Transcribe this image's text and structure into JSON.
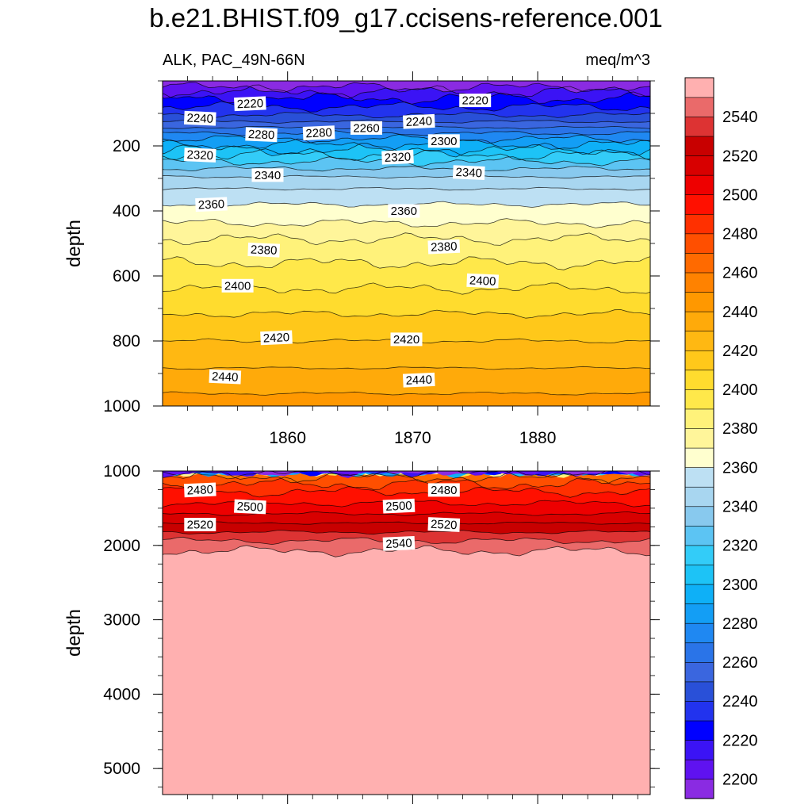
{
  "chart_data": {
    "type": "contour",
    "title": "b.e21.BHIST.f09_g17.ccisens-reference.001",
    "left_label": "ALK, PAC_49N-66N",
    "right_label": "meq/m^3",
    "xlabel": "",
    "ylabel": "depth",
    "x_ticks": [
      "1860",
      "1870",
      "1880"
    ],
    "xlim": [
      1850,
      1889
    ],
    "panels": [
      {
        "name": "upper",
        "ylim": [
          0,
          1000
        ],
        "y_ticks": [
          "200",
          "400",
          "600",
          "800",
          "1000"
        ],
        "contour_labels": [
          {
            "text": "2220",
            "x": 1857,
            "y": 70
          },
          {
            "text": "2220",
            "x": 1875,
            "y": 60
          },
          {
            "text": "2240",
            "x": 1853,
            "y": 115
          },
          {
            "text": "2240",
            "x": 1870.5,
            "y": 125
          },
          {
            "text": "2260",
            "x": 1866.3,
            "y": 145
          },
          {
            "text": "2280",
            "x": 1857.9,
            "y": 165
          },
          {
            "text": "2280",
            "x": 1862.5,
            "y": 160
          },
          {
            "text": "2300",
            "x": 1872.5,
            "y": 185
          },
          {
            "text": "2320",
            "x": 1853,
            "y": 228
          },
          {
            "text": "2320",
            "x": 1868.8,
            "y": 235
          },
          {
            "text": "2340",
            "x": 1858.4,
            "y": 290
          },
          {
            "text": "2340",
            "x": 1874.5,
            "y": 282
          },
          {
            "text": "2360",
            "x": 1853.9,
            "y": 380
          },
          {
            "text": "2360",
            "x": 1869.3,
            "y": 400
          },
          {
            "text": "2380",
            "x": 1858.1,
            "y": 520
          },
          {
            "text": "2380",
            "x": 1872.5,
            "y": 510
          },
          {
            "text": "2400",
            "x": 1856,
            "y": 630
          },
          {
            "text": "2400",
            "x": 1875.6,
            "y": 615
          },
          {
            "text": "2420",
            "x": 1859.1,
            "y": 790
          },
          {
            "text": "2420",
            "x": 1869.5,
            "y": 795
          },
          {
            "text": "2440",
            "x": 1855,
            "y": 910
          },
          {
            "text": "2440",
            "x": 1870.5,
            "y": 920
          }
        ]
      },
      {
        "name": "lower",
        "ylim": [
          1000,
          5350
        ],
        "y_ticks": [
          "1000",
          "2000",
          "3000",
          "4000",
          "5000"
        ],
        "contour_labels": [
          {
            "text": "2480",
            "x": 1853,
            "y": 1255
          },
          {
            "text": "2480",
            "x": 1872.5,
            "y": 1255
          },
          {
            "text": "2500",
            "x": 1857,
            "y": 1480
          },
          {
            "text": "2500",
            "x": 1868.9,
            "y": 1470
          },
          {
            "text": "2520",
            "x": 1853,
            "y": 1720
          },
          {
            "text": "2520",
            "x": 1872.5,
            "y": 1720
          },
          {
            "text": "2540",
            "x": 1868.9,
            "y": 1975
          }
        ]
      }
    ],
    "colorbar": {
      "levels": [
        2200,
        2210,
        2220,
        2230,
        2240,
        2250,
        2260,
        2270,
        2280,
        2290,
        2300,
        2310,
        2320,
        2330,
        2340,
        2350,
        2360,
        2370,
        2380,
        2390,
        2400,
        2410,
        2420,
        2430,
        2440,
        2450,
        2460,
        2470,
        2480,
        2490,
        2500,
        2510,
        2520,
        2530,
        2540,
        2550
      ],
      "tick_labels": [
        "2200",
        "2220",
        "2240",
        "2260",
        "2280",
        "2300",
        "2320",
        "2340",
        "2360",
        "2380",
        "2400",
        "2420",
        "2440",
        "2460",
        "2480",
        "2500",
        "2520",
        "2540"
      ],
      "colors": [
        "#8a2be2",
        "#5f12f0",
        "#3b13f5",
        "#0000ff",
        "#2233ee",
        "#2950d8",
        "#3a66df",
        "#2a74e8",
        "#1f88f2",
        "#139ef5",
        "#0eb0f7",
        "#1dc3f6",
        "#33ccf8",
        "#5cc4f3",
        "#88c9ee",
        "#a8d6f0",
        "#bde0f3",
        "#ffffcf",
        "#fff59a",
        "#fff27a",
        "#ffe84a",
        "#ffdc2e",
        "#ffc81a",
        "#ffb812",
        "#ffaa0a",
        "#ff9800",
        "#ff8200",
        "#ff6a00",
        "#ff4f00",
        "#ff3000",
        "#ff1000",
        "#ee0000",
        "#d80000",
        "#c80000",
        "#dd3333",
        "#ea6a6a",
        "#ffb0b0"
      ]
    }
  }
}
